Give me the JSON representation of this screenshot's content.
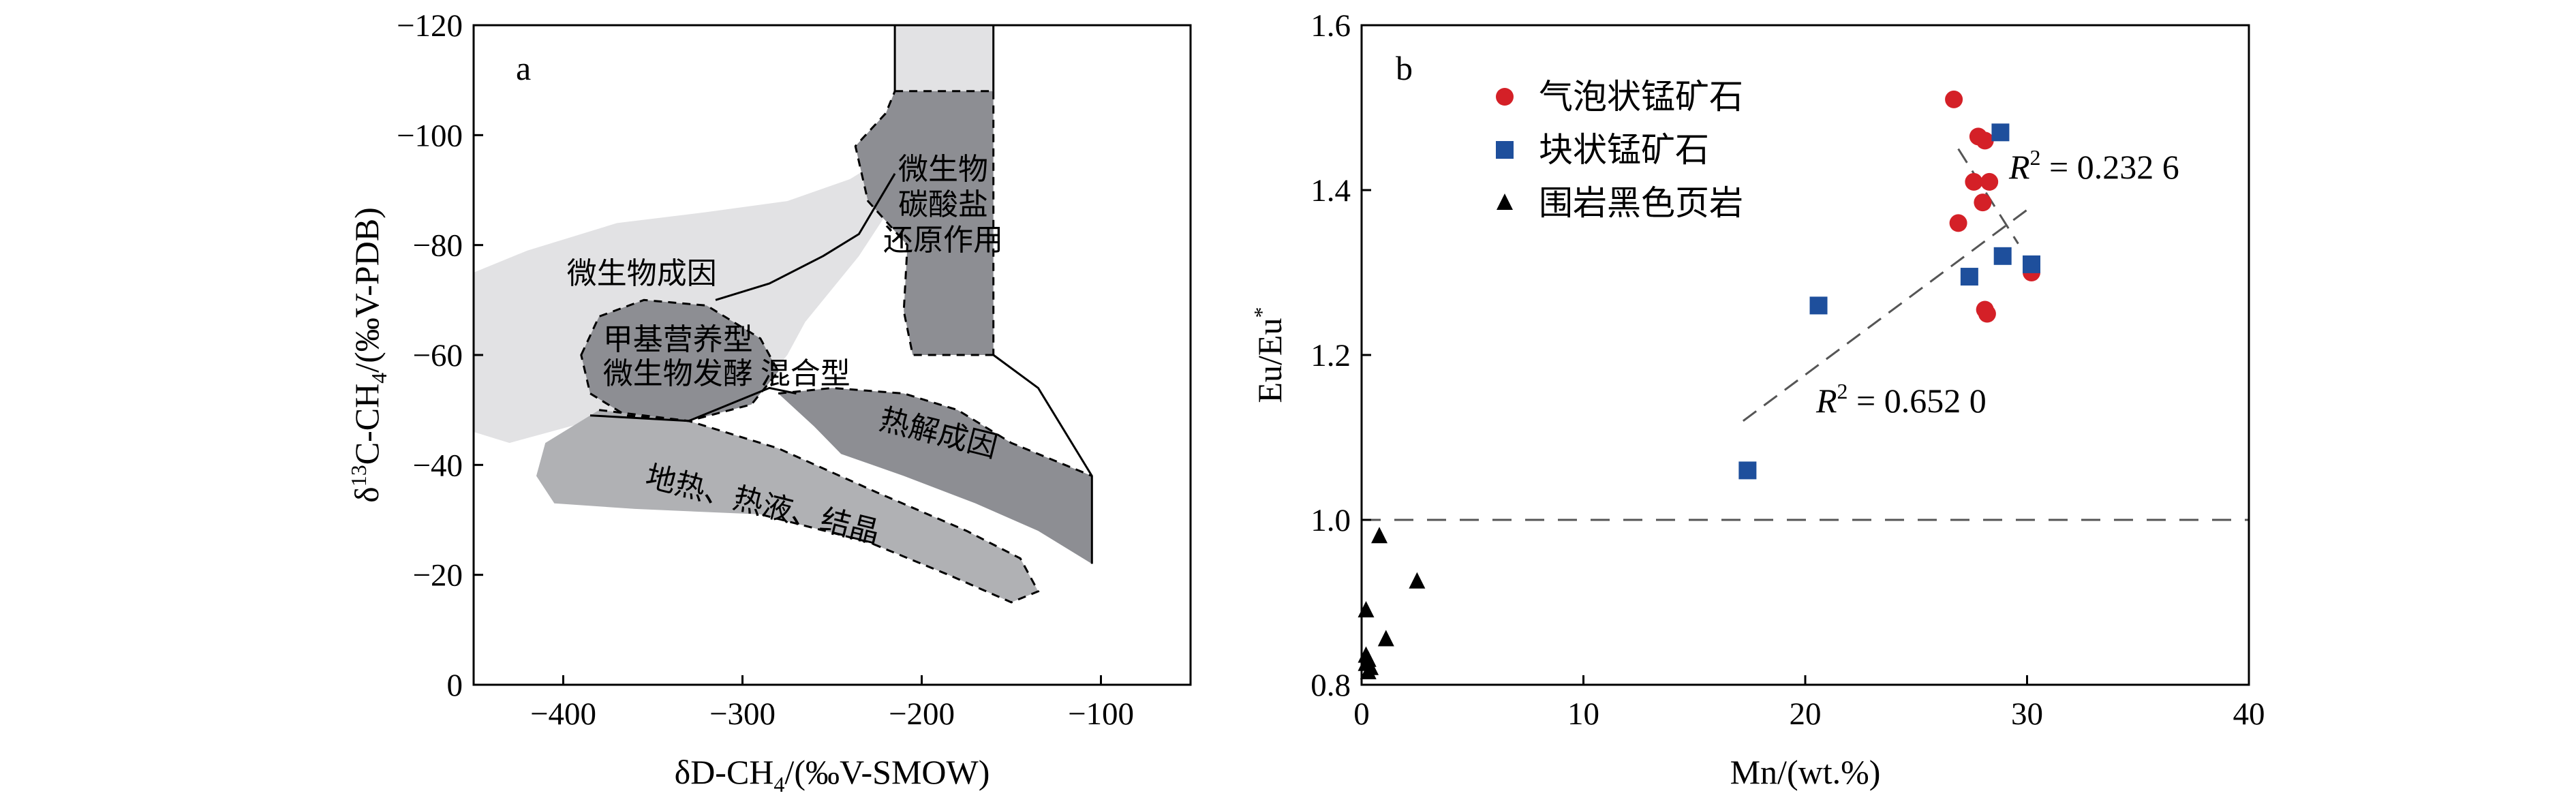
{
  "chart_data": [
    {
      "panel": "a",
      "type": "diagram",
      "xlabel_parts": [
        "δD-CH",
        "4",
        "/(‰V-SMOW)"
      ],
      "ylabel_parts": [
        "δ",
        "13",
        "C-CH",
        "4",
        "/(‰V-PDB)"
      ],
      "xlim": [
        -450,
        -50
      ],
      "ylim": [
        0,
        -120
      ],
      "xticks": [
        -400,
        -300,
        -200,
        -100
      ],
      "yticks": [
        0,
        -20,
        -40,
        -60,
        -80,
        -100,
        -120
      ],
      "xtick_labels": [
        "−400",
        "−300",
        "−200",
        "−100"
      ],
      "ytick_labels": [
        "0",
        "−20",
        "−40",
        "−60",
        "−80",
        "−100",
        "−120"
      ],
      "regions": [
        {
          "name": "微生物成因",
          "color": "#e2e2e4",
          "boundary": [
            [
              -450,
              -75
            ],
            [
              -420,
              -79
            ],
            [
              -370,
              -84
            ],
            [
              -320,
              -86
            ],
            [
              -275,
              -88
            ],
            [
              -240,
              -92
            ],
            [
              -215,
              -97
            ],
            [
              -200,
              -99
            ],
            [
              -205,
              -93
            ],
            [
              -235,
              -78
            ],
            [
              -265,
              -66
            ],
            [
              -275,
              -60
            ],
            [
              -285,
              -56
            ],
            [
              -350,
              -50
            ],
            [
              -385,
              -49
            ],
            [
              -385,
              -48
            ],
            [
              -430,
              -44
            ],
            [
              -450,
              -46
            ]
          ]
        },
        {
          "name": "microbial-carbonate-reduction-top",
          "color": "#e2e2e4",
          "boundary": [
            [
              -215,
              -120
            ],
            [
              -160,
              -120
            ],
            [
              -160,
              -108
            ],
            [
              -215,
              -108
            ]
          ]
        },
        {
          "name": "microbial-carbonate-reduction",
          "lines": [
            "微生物",
            "碳酸盐",
            "还原作用"
          ],
          "color": "#8d8e93",
          "boundary": [
            [
              -215,
              -108
            ],
            [
              -160,
              -108
            ],
            [
              -160,
              -60
            ],
            [
              -205,
              -60
            ],
            [
              -210,
              -68
            ],
            [
              -208,
              -80
            ],
            [
              -230,
              -88
            ],
            [
              -237,
              -98
            ],
            [
              -220,
              -104
            ],
            [
              -215,
              -108
            ]
          ]
        },
        {
          "name": "甲基营养型/微生物发酵混合型",
          "lines": [
            "甲基营养型",
            "微生物发酵"
          ],
          "extra": "混合型",
          "color": "#8d8e93",
          "boundary": [
            [
              -390,
              -60
            ],
            [
              -380,
              -67
            ],
            [
              -355,
              -70
            ],
            [
              -320,
              -69
            ],
            [
              -290,
              -63
            ],
            [
              -280,
              -57
            ],
            [
              -295,
              -51
            ],
            [
              -330,
              -48
            ],
            [
              -365,
              -49
            ],
            [
              -385,
              -53
            ]
          ]
        },
        {
          "name": "热解成因",
          "color": "#8d8e93",
          "boundary": [
            [
              -280,
              -53
            ],
            [
              -250,
              -54
            ],
            [
              -210,
              -53
            ],
            [
              -180,
              -50
            ],
            [
              -150,
              -44
            ],
            [
              -105,
              -38
            ],
            [
              -105,
              -22
            ],
            [
              -135,
              -28
            ],
            [
              -170,
              -33
            ],
            [
              -210,
              -38
            ],
            [
              -245,
              -42
            ],
            [
              -260,
              -47
            ]
          ]
        },
        {
          "name": "地热、热液、结晶",
          "color": "#b0b1b4",
          "boundary": [
            [
              -410,
              -44
            ],
            [
              -380,
              -50
            ],
            [
              -330,
              -48
            ],
            [
              -280,
              -43
            ],
            [
              -225,
              -35
            ],
            [
              -175,
              -28
            ],
            [
              -145,
              -23
            ],
            [
              -135,
              -17
            ],
            [
              -150,
              -15
            ],
            [
              -185,
              -20
            ],
            [
              -230,
              -26
            ],
            [
              -290,
              -31
            ],
            [
              -360,
              -32
            ],
            [
              -405,
              -33
            ],
            [
              -415,
              -38
            ]
          ]
        }
      ],
      "boundary_lines": [
        {
          "style": "solid",
          "points": [
            [
              -215,
              -120
            ],
            [
              -215,
              -108
            ]
          ]
        },
        {
          "style": "solid",
          "points": [
            [
              -160,
              -120
            ],
            [
              -160,
              -108
            ]
          ]
        },
        {
          "style": "dashed",
          "points": [
            [
              -215,
              -108
            ],
            [
              -160,
              -108
            ]
          ]
        },
        {
          "style": "dashed",
          "points": [
            [
              -160,
              -108
            ],
            [
              -160,
              -60
            ]
          ]
        },
        {
          "style": "dashed",
          "points": [
            [
              -160,
              -60
            ],
            [
              -205,
              -60
            ],
            [
              -210,
              -68
            ],
            [
              -208,
              -80
            ],
            [
              -230,
              -88
            ],
            [
              -237,
              -98
            ],
            [
              -220,
              -104
            ],
            [
              -215,
              -108
            ]
          ]
        },
        {
          "style": "solid",
          "points": [
            [
              -160,
              -60
            ],
            [
              -135,
              -54
            ],
            [
              -105,
              -38
            ],
            [
              -105,
              -22
            ]
          ]
        },
        {
          "style": "solid",
          "points": [
            [
              -315,
              -70
            ],
            [
              -285,
              -73
            ],
            [
              -255,
              -78
            ],
            [
              -235,
              -82
            ],
            [
              -215,
              -93
            ]
          ]
        },
        {
          "style": "solid",
          "points": [
            [
              -385,
              -49
            ],
            [
              -330,
              -48
            ],
            [
              -285,
              -54
            ],
            [
              -270,
              -53
            ]
          ]
        },
        {
          "style": "dashed",
          "points": [
            [
              -280,
              -53
            ],
            [
              -250,
              -54
            ],
            [
              -210,
              -53
            ],
            [
              -180,
              -50
            ],
            [
              -150,
              -44
            ],
            [
              -105,
              -38
            ]
          ]
        }
      ]
    },
    {
      "panel": "b",
      "type": "scatter",
      "xlabel": "Mn/(wt.%)",
      "ylabel_parts": [
        "Eu/Eu",
        "*"
      ],
      "xlim": [
        0,
        40
      ],
      "ylim": [
        0.8,
        1.6
      ],
      "xticks": [
        0,
        10,
        20,
        30,
        40
      ],
      "yticks": [
        0.8,
        1.0,
        1.2,
        1.4,
        1.6
      ],
      "xtick_labels": [
        "0",
        "10",
        "20",
        "30",
        "40"
      ],
      "ytick_labels": [
        "0.8",
        "1.0",
        "1.2",
        "1.4",
        "1.6"
      ],
      "legend_position": "top-left",
      "reference_line_y": 1.0,
      "series": [
        {
          "name": "气泡状锰矿石",
          "marker": "circle",
          "color": "#d42027",
          "points": [
            [
              26.7,
              1.51
            ],
            [
              27.8,
              1.465
            ],
            [
              28.1,
              1.46
            ],
            [
              27.6,
              1.41
            ],
            [
              28.3,
              1.41
            ],
            [
              28.0,
              1.385
            ],
            [
              26.9,
              1.36
            ],
            [
              30.2,
              1.3
            ],
            [
              28.1,
              1.255
            ],
            [
              28.2,
              1.25
            ]
          ]
        },
        {
          "name": "块状锰矿石",
          "marker": "square",
          "color": "#1e4f9c",
          "points": [
            [
              28.8,
              1.47
            ],
            [
              28.9,
              1.32
            ],
            [
              30.2,
              1.31
            ],
            [
              27.4,
              1.295
            ],
            [
              20.6,
              1.26
            ],
            [
              17.4,
              1.06
            ]
          ]
        },
        {
          "name": "围岩黑色页岩",
          "marker": "triangle",
          "color": "#000000",
          "points": [
            [
              0.8,
              0.98
            ],
            [
              2.5,
              0.925
            ],
            [
              0.2,
              0.89
            ],
            [
              1.1,
              0.855
            ],
            [
              0.2,
              0.835
            ],
            [
              0.3,
              0.83
            ],
            [
              0.2,
              0.825
            ],
            [
              0.4,
              0.82
            ],
            [
              0.3,
              0.815
            ]
          ]
        }
      ],
      "trendlines": [
        {
          "r2_label": "= 0.652 0",
          "from": [
            17.2,
            1.12
          ],
          "to": [
            30.2,
            1.38
          ]
        },
        {
          "r2_label": "= 0.232 6",
          "from": [
            26.9,
            1.45
          ],
          "to": [
            29.6,
            1.335
          ]
        }
      ],
      "annotation_symbol": "R"
    }
  ]
}
